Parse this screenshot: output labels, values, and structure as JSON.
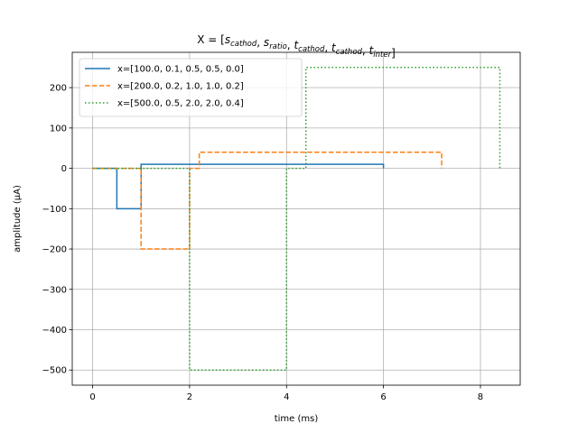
{
  "chart_data": {
    "type": "line",
    "title_parts": [
      {
        "t": "X = ["
      },
      {
        "t": "s",
        "sub": "cathod",
        "italic": true
      },
      {
        "t": ", "
      },
      {
        "t": "s",
        "sub": "ratio",
        "italic": true
      },
      {
        "t": ", "
      },
      {
        "t": "t",
        "sub": "cathod",
        "italic": true
      },
      {
        "t": ", "
      },
      {
        "t": "t",
        "sub": "cathod",
        "italic": true
      },
      {
        "t": ", "
      },
      {
        "t": "t",
        "sub": "inter",
        "italic": true
      },
      {
        "t": "]"
      }
    ],
    "xlabel": "time (ms)",
    "ylabel": "amplitude (μA)",
    "xlim": [
      -0.42,
      8.82
    ],
    "ylim": [
      -537.5,
      287.5
    ],
    "xticks": [
      0,
      2,
      4,
      6,
      8
    ],
    "xtick_labels": [
      "0",
      "2",
      "4",
      "6",
      "8"
    ],
    "yticks": [
      -500,
      -400,
      -300,
      -200,
      -100,
      0,
      100,
      200
    ],
    "ytick_labels": [
      "−500",
      "−400",
      "−300",
      "−200",
      "−100",
      "0",
      "100",
      "200"
    ],
    "grid": true,
    "legend_position": "upper-left",
    "series": [
      {
        "name": "x=[100.0, 0.1, 0.5, 0.5, 0.0]",
        "color": "#1f77b4",
        "style": "solid",
        "x": [
          0,
          0.5,
          0.5,
          1.0,
          1.0,
          6.0,
          6.0
        ],
        "y": [
          0,
          0,
          -100,
          -100,
          10,
          10,
          0
        ]
      },
      {
        "name": "x=[200.0, 0.2, 1.0, 1.0, 0.2]",
        "color": "#ff7f0e",
        "style": "dashed",
        "x": [
          0,
          1.0,
          1.0,
          2.0,
          2.0,
          2.2,
          2.2,
          7.2,
          7.2
        ],
        "y": [
          0,
          0,
          -200,
          -200,
          0,
          0,
          40,
          40,
          0
        ]
      },
      {
        "name": "x=[500.0, 0.5, 2.0, 2.0, 0.4]",
        "color": "#2ca02c",
        "style": "dotted",
        "x": [
          0,
          2.0,
          2.0,
          4.0,
          4.0,
          4.4,
          4.4,
          8.4,
          8.4
        ],
        "y": [
          0,
          0,
          -500,
          -500,
          0,
          0,
          250,
          250,
          0
        ]
      }
    ]
  }
}
